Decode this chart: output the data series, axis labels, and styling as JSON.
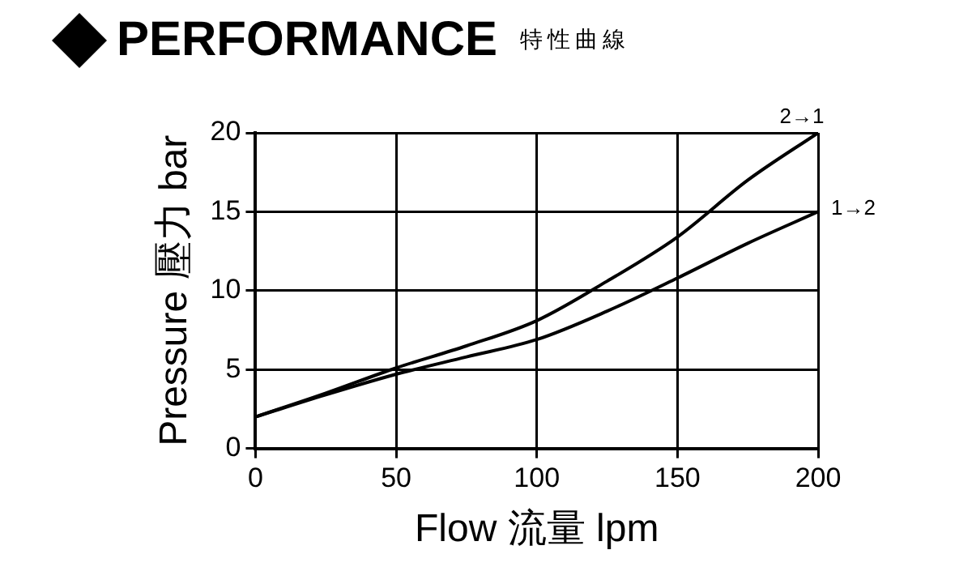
{
  "chart_data": {
    "type": "line",
    "title": "PERFORMANCE",
    "subtitle": "特性曲線",
    "xlabel": "Flow 流量 lpm",
    "ylabel": "Pressure 壓力 bar",
    "x": [
      0,
      25,
      50,
      75,
      100,
      125,
      150,
      175,
      200
    ],
    "series": [
      {
        "name": "2→1",
        "color": "#000000",
        "values": [
          2,
          3.5,
          5.1,
          6.5,
          8.1,
          10.6,
          13.4,
          17.0,
          20
        ]
      },
      {
        "name": "1→2",
        "color": "#000000",
        "values": [
          2,
          3.4,
          4.7,
          5.8,
          6.9,
          8.7,
          10.8,
          13.0,
          15
        ]
      }
    ],
    "xlim": [
      0,
      200
    ],
    "xticks": [
      0,
      50,
      100,
      150,
      200
    ],
    "ylim": [
      0,
      20
    ],
    "yticks": [
      0,
      5,
      10,
      15,
      20
    ],
    "grid": true,
    "legend": false,
    "marker": "none",
    "line_style": "solid"
  }
}
